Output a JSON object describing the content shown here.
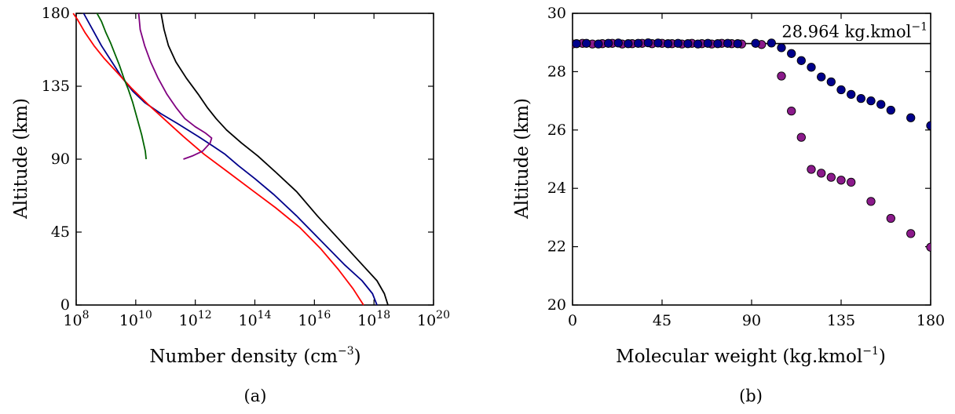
{
  "chart_data": [
    {
      "id": "a",
      "type": "line",
      "caption": "(a)",
      "xlabel": "Number density",
      "xlabel_unit": "(cm",
      "xlabel_unit_exp": "−3",
      "xlabel_unit_close": ")",
      "ylabel": "Altitude (km)",
      "xscale": "log",
      "xlim": [
        100000000.0,
        1e+20
      ],
      "ylim": [
        0,
        180
      ],
      "xticks": [
        {
          "base": "10",
          "exp": "8",
          "value": 100000000.0
        },
        {
          "base": "10",
          "exp": "10",
          "value": 10000000000.0
        },
        {
          "base": "10",
          "exp": "12",
          "value": 1000000000000.0
        },
        {
          "base": "10",
          "exp": "14",
          "value": 100000000000000.0
        },
        {
          "base": "10",
          "exp": "16",
          "value": 1e+16
        },
        {
          "base": "10",
          "exp": "18",
          "value": 1e+18
        },
        {
          "base": "10",
          "exp": "20",
          "value": 1e+20
        }
      ],
      "yticks": [
        "0",
        "45",
        "90",
        "135",
        "180"
      ],
      "grid": false,
      "series": [
        {
          "color": "#000000",
          "log10_x": [
            18.47,
            18.35,
            18.1,
            17.6,
            16.85,
            16.1,
            15.4,
            14.7,
            14.1,
            13.55,
            13.05,
            12.7,
            12.4,
            12.1,
            11.7,
            11.35,
            11.1,
            10.95,
            10.85
          ],
          "y": [
            0,
            7,
            15,
            25,
            40,
            55,
            70,
            82,
            92,
            100,
            108,
            115,
            122,
            130,
            140,
            150,
            160,
            170,
            180
          ]
        },
        {
          "color": "#00008b",
          "log10_x": [
            18.1,
            17.95,
            17.6,
            17.0,
            16.2,
            15.4,
            14.65,
            14.0,
            13.45,
            13.0,
            12.6,
            12.1,
            11.4,
            10.85,
            10.3,
            9.9,
            9.55,
            9.2,
            8.85,
            8.55,
            8.25
          ],
          "y": [
            0,
            7,
            15,
            25,
            40,
            55,
            68,
            78,
            86,
            93,
            98,
            104,
            112,
            118,
            125,
            132,
            140,
            150,
            160,
            170,
            180
          ]
        },
        {
          "color": "#ff0000",
          "log10_x": [
            17.65,
            17.3,
            16.8,
            16.2,
            15.5,
            14.7,
            13.9,
            13.1,
            12.3,
            11.6,
            11.0,
            10.4,
            9.85,
            9.35,
            8.95,
            8.6,
            8.3,
            8.05,
            7.9
          ],
          "y": [
            0,
            10,
            22,
            35,
            48,
            60,
            71,
            82,
            93,
            104,
            114,
            124,
            134,
            144,
            152,
            160,
            168,
            176,
            180
          ]
        },
        {
          "color": "#800080",
          "log10_x": [
            11.6,
            11.9,
            12.25,
            12.5,
            12.55,
            12.35,
            12.0,
            11.65,
            11.35,
            11.05,
            10.75,
            10.5,
            10.3,
            10.15,
            10.1
          ],
          "y": [
            90,
            92,
            95,
            100,
            103,
            106,
            110,
            115,
            122,
            130,
            140,
            150,
            160,
            170,
            180
          ]
        },
        {
          "color": "#006400",
          "log10_x": [
            10.35,
            10.32,
            10.2,
            10.05,
            9.9,
            9.75,
            9.6,
            9.45,
            9.3,
            9.15,
            9.0,
            8.85,
            8.7
          ],
          "y": [
            90,
            95,
            105,
            115,
            125,
            133,
            140,
            148,
            155,
            162,
            168,
            175,
            180
          ]
        }
      ]
    },
    {
      "id": "b",
      "type": "scatter",
      "caption": "(b)",
      "xlabel": "Molecular weight (kg.kmol",
      "xlabel_exp": "−1",
      "xlabel_close": ")",
      "ylabel": "Altitude (km)",
      "xlim": [
        0,
        180
      ],
      "ylim": [
        20,
        30
      ],
      "xticks": [
        "0",
        "45",
        "90",
        "135",
        "180"
      ],
      "yticks": [
        "20",
        "22",
        "24",
        "26",
        "28",
        "30"
      ],
      "grid": false,
      "reference_line": {
        "y": 28.964,
        "label": "28.964 kg.kmol",
        "label_exp": "−1"
      },
      "series": [
        {
          "color": "#8b1a8b",
          "x": [
            0,
            5,
            10,
            15,
            20,
            25,
            30,
            35,
            40,
            45,
            50,
            55,
            60,
            65,
            70,
            75,
            80,
            85,
            95,
            105,
            110,
            115,
            120,
            125,
            130,
            135,
            140,
            150,
            160,
            170,
            180
          ],
          "y": [
            28.95,
            28.97,
            28.95,
            28.96,
            28.97,
            28.95,
            28.96,
            28.97,
            28.96,
            28.97,
            28.96,
            28.95,
            28.97,
            28.96,
            28.95,
            28.97,
            28.96,
            28.95,
            28.93,
            27.85,
            26.65,
            25.75,
            24.65,
            24.52,
            24.38,
            24.28,
            24.21,
            23.55,
            22.97,
            22.45,
            21.98
          ]
        },
        {
          "color": "#00008b",
          "x": [
            2,
            7,
            13,
            18,
            23,
            28,
            33,
            38,
            43,
            48,
            53,
            58,
            63,
            68,
            73,
            78,
            83,
            92,
            100,
            105,
            110,
            115,
            120,
            125,
            130,
            135,
            140,
            145,
            150,
            155,
            160,
            170,
            180
          ],
          "y": [
            28.96,
            28.97,
            28.95,
            28.97,
            28.98,
            28.96,
            28.97,
            28.99,
            28.98,
            28.96,
            28.97,
            28.96,
            28.95,
            28.97,
            28.96,
            28.97,
            28.96,
            28.97,
            28.98,
            28.82,
            28.62,
            28.38,
            28.15,
            27.82,
            27.65,
            27.38,
            27.22,
            27.08,
            27.0,
            26.88,
            26.68,
            26.42,
            26.15
          ]
        }
      ]
    }
  ]
}
